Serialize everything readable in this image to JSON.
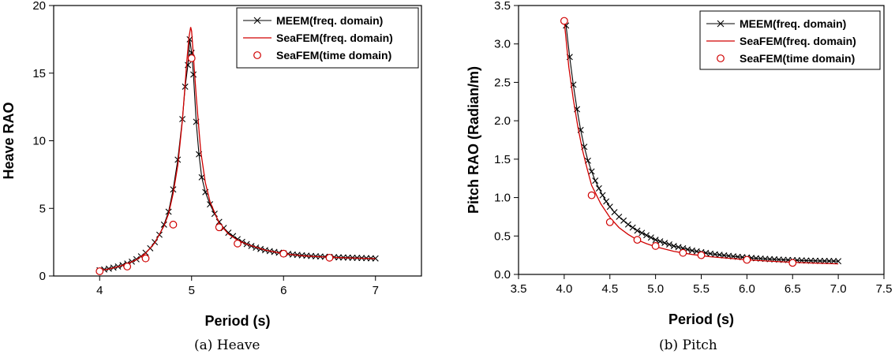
{
  "captions": [
    "(a)  Heave",
    "(b)  Pitch"
  ],
  "colors": {
    "meem": "#000000",
    "seafem": "#d00000",
    "marker_edge": "#d00000",
    "marker_fill": "#ffffff"
  },
  "chart_data": [
    {
      "type": "line",
      "xlabel": "Period (s)",
      "ylabel": "Heave RAO",
      "xlim": [
        3.5,
        7.5
      ],
      "ylim": [
        0,
        20
      ],
      "xticks": [
        4,
        5,
        6,
        7
      ],
      "xtick_labels": [
        "4",
        "5",
        "6",
        "7"
      ],
      "yticks": [
        0,
        5,
        10,
        15,
        20
      ],
      "ytick_labels": [
        "0",
        "5",
        "10",
        "15",
        "20"
      ],
      "grid": false,
      "legend_position": "top-right",
      "series": [
        {
          "name": "MEEM(freq. domain)",
          "style": "line-x-marker",
          "x": [
            4.0,
            4.05,
            4.1,
            4.15,
            4.2,
            4.25,
            4.3,
            4.35,
            4.4,
            4.45,
            4.5,
            4.55,
            4.6,
            4.65,
            4.7,
            4.75,
            4.8,
            4.85,
            4.9,
            4.93,
            4.96,
            4.98,
            5.0,
            5.02,
            5.05,
            5.08,
            5.11,
            5.15,
            5.2,
            5.25,
            5.3,
            5.35,
            5.4,
            5.45,
            5.5,
            5.55,
            5.6,
            5.65,
            5.7,
            5.75,
            5.8,
            5.85,
            5.9,
            5.95,
            6.0,
            6.05,
            6.1,
            6.15,
            6.2,
            6.25,
            6.3,
            6.35,
            6.4,
            6.45,
            6.5,
            6.55,
            6.6,
            6.65,
            6.7,
            6.75,
            6.8,
            6.85,
            6.9,
            6.95,
            7.0
          ],
          "y": [
            0.42,
            0.48,
            0.54,
            0.62,
            0.7,
            0.8,
            0.92,
            1.06,
            1.24,
            1.45,
            1.72,
            2.05,
            2.5,
            3.05,
            3.8,
            4.75,
            6.4,
            8.6,
            11.6,
            14.0,
            15.6,
            17.5,
            16.5,
            14.9,
            11.4,
            9.0,
            7.3,
            6.2,
            5.3,
            4.6,
            4.0,
            3.55,
            3.2,
            2.95,
            2.72,
            2.52,
            2.36,
            2.22,
            2.1,
            2.0,
            1.91,
            1.84,
            1.78,
            1.72,
            1.67,
            1.63,
            1.59,
            1.56,
            1.53,
            1.5,
            1.48,
            1.46,
            1.44,
            1.42,
            1.41,
            1.39,
            1.38,
            1.37,
            1.36,
            1.35,
            1.34,
            1.33,
            1.32,
            1.31,
            1.3
          ]
        },
        {
          "name": "SeaFEM(freq. domain)",
          "style": "line",
          "x": [
            4.0,
            4.1,
            4.2,
            4.3,
            4.4,
            4.5,
            4.6,
            4.7,
            4.75,
            4.8,
            4.85,
            4.9,
            4.93,
            4.95,
            4.97,
            4.99,
            5.0,
            5.01,
            5.03,
            5.05,
            5.08,
            5.1,
            5.15,
            5.2,
            5.3,
            5.4,
            5.5,
            5.6,
            5.8,
            6.0,
            6.2,
            6.4,
            6.6,
            6.8,
            7.0
          ],
          "y": [
            0.4,
            0.52,
            0.68,
            0.9,
            1.2,
            1.68,
            2.45,
            3.7,
            4.6,
            6.1,
            8.2,
            11.5,
            14.2,
            16.0,
            17.6,
            18.4,
            18.1,
            17.2,
            15.3,
            13.3,
            10.8,
            9.2,
            6.9,
            5.5,
            3.9,
            3.1,
            2.65,
            2.35,
            1.92,
            1.65,
            1.5,
            1.42,
            1.36,
            1.32,
            1.28
          ]
        },
        {
          "name": "SeaFEM(time domain)",
          "style": "circle-marker",
          "x": [
            4.0,
            4.3,
            4.5,
            4.8,
            5.0,
            5.3,
            5.5,
            6.0,
            6.5
          ],
          "y": [
            0.35,
            0.7,
            1.3,
            3.8,
            16.1,
            3.6,
            2.4,
            1.65,
            1.35
          ]
        }
      ]
    },
    {
      "type": "line",
      "xlabel": "Period (s)",
      "ylabel": "Pitch RAO (Radian/m)",
      "xlim": [
        3.5,
        7.5
      ],
      "ylim": [
        0,
        3.5
      ],
      "xticks": [
        3.5,
        4.0,
        4.5,
        5.0,
        5.5,
        6.0,
        6.5,
        7.0,
        7.5
      ],
      "xtick_labels": [
        "3.5",
        "4.0",
        "4.5",
        "5.0",
        "5.5",
        "6.0",
        "6.5",
        "7.0",
        "7.5"
      ],
      "yticks": [
        0,
        0.5,
        1.0,
        1.5,
        2.0,
        2.5,
        3.0,
        3.5
      ],
      "ytick_labels": [
        "0.0",
        "0.5",
        "1.0",
        "1.5",
        "2.0",
        "2.5",
        "3.0",
        "3.5"
      ],
      "grid": false,
      "legend_position": "top-right",
      "series": [
        {
          "name": "MEEM(freq. domain)",
          "style": "line-x-marker",
          "x": [
            4.02,
            4.06,
            4.1,
            4.14,
            4.18,
            4.22,
            4.26,
            4.3,
            4.34,
            4.38,
            4.42,
            4.46,
            4.5,
            4.55,
            4.6,
            4.65,
            4.7,
            4.75,
            4.8,
            4.85,
            4.9,
            4.95,
            5.0,
            5.05,
            5.1,
            5.15,
            5.2,
            5.25,
            5.3,
            5.35,
            5.4,
            5.45,
            5.5,
            5.55,
            5.6,
            5.65,
            5.7,
            5.75,
            5.8,
            5.85,
            5.9,
            5.95,
            6.0,
            6.05,
            6.1,
            6.15,
            6.2,
            6.25,
            6.3,
            6.35,
            6.4,
            6.45,
            6.5,
            6.55,
            6.6,
            6.65,
            6.7,
            6.75,
            6.8,
            6.85,
            6.9,
            6.95,
            7.0
          ],
          "y": [
            3.24,
            2.83,
            2.47,
            2.15,
            1.88,
            1.66,
            1.48,
            1.34,
            1.22,
            1.12,
            1.03,
            0.95,
            0.88,
            0.81,
            0.75,
            0.7,
            0.65,
            0.61,
            0.57,
            0.54,
            0.51,
            0.48,
            0.45,
            0.43,
            0.41,
            0.39,
            0.37,
            0.355,
            0.34,
            0.325,
            0.31,
            0.3,
            0.29,
            0.28,
            0.27,
            0.262,
            0.255,
            0.248,
            0.241,
            0.235,
            0.229,
            0.224,
            0.219,
            0.214,
            0.21,
            0.206,
            0.202,
            0.199,
            0.196,
            0.193,
            0.19,
            0.188,
            0.186,
            0.184,
            0.182,
            0.18,
            0.178,
            0.177,
            0.176,
            0.175,
            0.174,
            0.173,
            0.172
          ]
        },
        {
          "name": "SeaFEM(freq. domain)",
          "style": "line",
          "x": [
            4.0,
            4.05,
            4.1,
            4.15,
            4.2,
            4.25,
            4.3,
            4.4,
            4.5,
            4.6,
            4.7,
            4.8,
            4.9,
            5.0,
            5.2,
            5.4,
            5.6,
            5.8,
            6.0,
            6.2,
            6.4,
            6.6,
            6.8,
            7.0
          ],
          "y": [
            3.3,
            2.7,
            2.28,
            1.92,
            1.62,
            1.38,
            1.16,
            0.92,
            0.74,
            0.61,
            0.52,
            0.45,
            0.4,
            0.36,
            0.3,
            0.26,
            0.23,
            0.21,
            0.19,
            0.175,
            0.163,
            0.153,
            0.145,
            0.138
          ]
        },
        {
          "name": "SeaFEM(time domain)",
          "style": "circle-marker",
          "x": [
            4.0,
            4.3,
            4.5,
            4.8,
            5.0,
            5.3,
            5.5,
            6.0,
            6.5
          ],
          "y": [
            3.3,
            1.03,
            0.68,
            0.45,
            0.37,
            0.28,
            0.25,
            0.19,
            0.15
          ]
        }
      ]
    }
  ]
}
